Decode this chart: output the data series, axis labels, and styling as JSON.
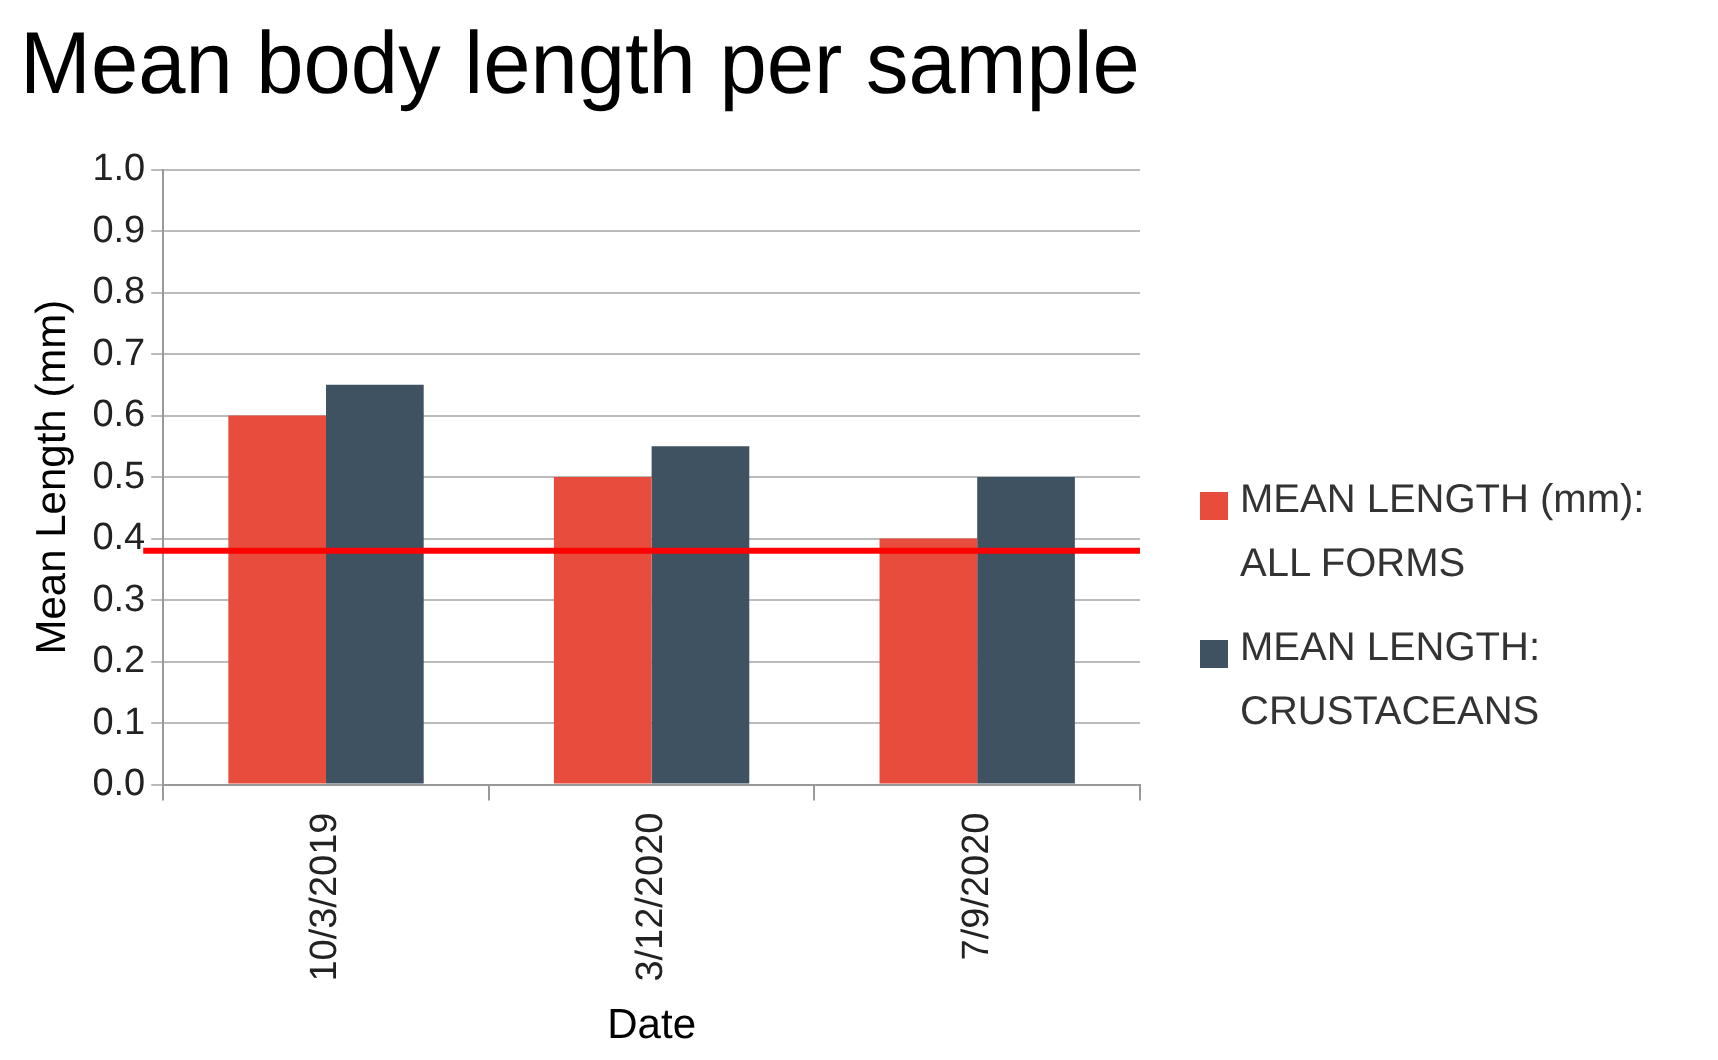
{
  "chart_data": {
    "type": "bar",
    "title": "Mean body length per sample",
    "xlabel": "Date",
    "ylabel": "Mean Length (mm)",
    "categories": [
      "10/3/2019",
      "3/12/2020",
      "7/9/2020"
    ],
    "series": [
      {
        "name": "MEAN LENGTH (mm): ALL FORMS",
        "color": "#e84c3d",
        "values": [
          0.6,
          0.5,
          0.4
        ]
      },
      {
        "name": "MEAN LENGTH: CRUSTACEANS",
        "color": "#3f5262",
        "values": [
          0.65,
          0.55,
          0.5
        ]
      }
    ],
    "ylim": [
      0,
      1
    ],
    "yticks": [
      {
        "value": 0,
        "label": "0.0"
      },
      0.1,
      0.2,
      0.3,
      0.4,
      0.5,
      0.6,
      0.7,
      0.8,
      0.9,
      {
        "value": 1,
        "label": "1.0"
      }
    ],
    "ref_lines": [
      {
        "axis": "y",
        "value": 0.38,
        "color": "#ff0000"
      }
    ],
    "grid": "y",
    "legend": "right"
  }
}
